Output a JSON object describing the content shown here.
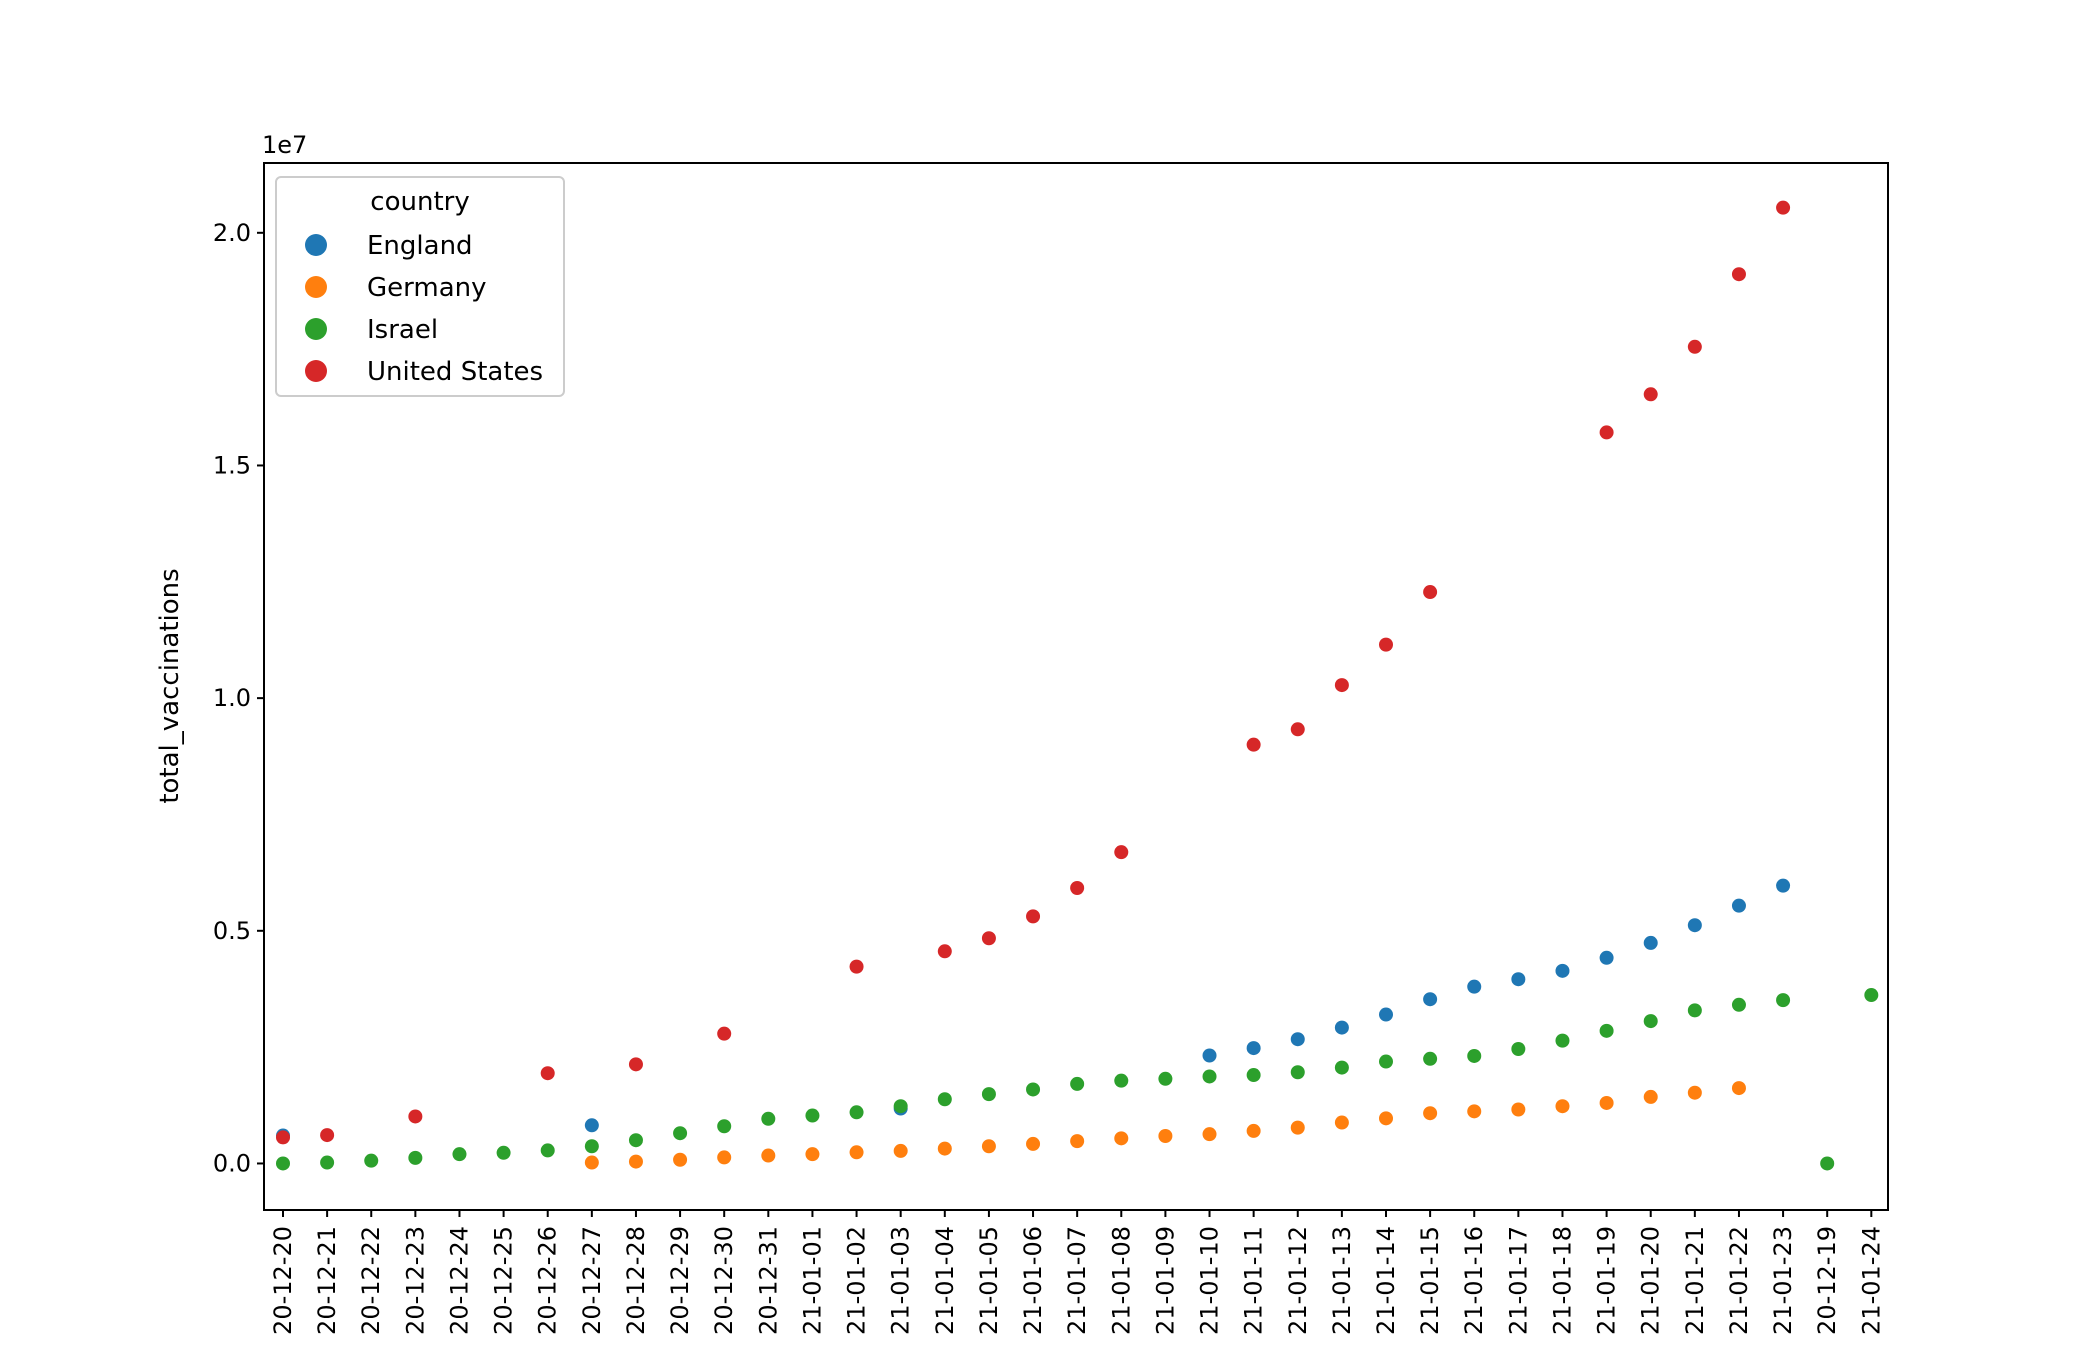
{
  "chart_data": {
    "type": "scatter",
    "title": "",
    "xlabel": "",
    "ylabel": "total_vaccinations",
    "offset_text": "1e7",
    "y_scale_factor": 10000000,
    "ylim": [
      -1000000,
      21500000
    ],
    "yticks": [
      0,
      5000000,
      10000000,
      15000000,
      20000000
    ],
    "ytick_labels": [
      "0.0",
      "0.5",
      "1.0",
      "1.5",
      "2.0"
    ],
    "categories": [
      "20-12-20",
      "20-12-21",
      "20-12-22",
      "20-12-23",
      "20-12-24",
      "20-12-25",
      "20-12-26",
      "20-12-27",
      "20-12-28",
      "20-12-29",
      "20-12-30",
      "20-12-31",
      "21-01-01",
      "21-01-02",
      "21-01-03",
      "21-01-04",
      "21-01-05",
      "21-01-06",
      "21-01-07",
      "21-01-08",
      "21-01-09",
      "21-01-10",
      "21-01-11",
      "21-01-12",
      "21-01-13",
      "21-01-14",
      "21-01-15",
      "21-01-16",
      "21-01-17",
      "21-01-18",
      "21-01-19",
      "21-01-20",
      "21-01-21",
      "21-01-22",
      "21-01-23",
      "20-12-19",
      "21-01-24"
    ],
    "grid": false,
    "legend": {
      "title": "country",
      "position": "top-left"
    },
    "series": [
      {
        "name": "England",
        "color": "#1f77b4",
        "points": [
          [
            "20-12-20",
            600000
          ],
          [
            "20-12-27",
            820000
          ],
          [
            "21-01-03",
            1180000
          ],
          [
            "21-01-10",
            2320000
          ],
          [
            "21-01-11",
            2480000
          ],
          [
            "21-01-12",
            2670000
          ],
          [
            "21-01-13",
            2920000
          ],
          [
            "21-01-14",
            3200000
          ],
          [
            "21-01-15",
            3530000
          ],
          [
            "21-01-16",
            3800000
          ],
          [
            "21-01-17",
            3960000
          ],
          [
            "21-01-18",
            4140000
          ],
          [
            "21-01-19",
            4420000
          ],
          [
            "21-01-20",
            4740000
          ],
          [
            "21-01-21",
            5120000
          ],
          [
            "21-01-22",
            5540000
          ],
          [
            "21-01-23",
            5970000
          ]
        ]
      },
      {
        "name": "Germany",
        "color": "#ff7f0e",
        "points": [
          [
            "20-12-27",
            20000
          ],
          [
            "20-12-28",
            40000
          ],
          [
            "20-12-29",
            80000
          ],
          [
            "20-12-30",
            130000
          ],
          [
            "20-12-31",
            170000
          ],
          [
            "21-01-01",
            200000
          ],
          [
            "21-01-02",
            240000
          ],
          [
            "21-01-03",
            270000
          ],
          [
            "21-01-04",
            320000
          ],
          [
            "21-01-05",
            370000
          ],
          [
            "21-01-06",
            420000
          ],
          [
            "21-01-07",
            480000
          ],
          [
            "21-01-08",
            540000
          ],
          [
            "21-01-09",
            590000
          ],
          [
            "21-01-10",
            630000
          ],
          [
            "21-01-11",
            700000
          ],
          [
            "21-01-12",
            770000
          ],
          [
            "21-01-13",
            880000
          ],
          [
            "21-01-14",
            970000
          ],
          [
            "21-01-15",
            1080000
          ],
          [
            "21-01-16",
            1120000
          ],
          [
            "21-01-17",
            1160000
          ],
          [
            "21-01-18",
            1230000
          ],
          [
            "21-01-19",
            1300000
          ],
          [
            "21-01-20",
            1430000
          ],
          [
            "21-01-21",
            1520000
          ],
          [
            "21-01-22",
            1620000
          ]
        ]
      },
      {
        "name": "Israel",
        "color": "#2ca02c",
        "points": [
          [
            "20-12-20",
            0
          ],
          [
            "20-12-21",
            20000
          ],
          [
            "20-12-22",
            60000
          ],
          [
            "20-12-23",
            120000
          ],
          [
            "20-12-24",
            200000
          ],
          [
            "20-12-25",
            230000
          ],
          [
            "20-12-26",
            280000
          ],
          [
            "20-12-27",
            370000
          ],
          [
            "20-12-28",
            500000
          ],
          [
            "20-12-29",
            650000
          ],
          [
            "20-12-30",
            800000
          ],
          [
            "20-12-31",
            960000
          ],
          [
            "21-01-01",
            1030000
          ],
          [
            "21-01-02",
            1100000
          ],
          [
            "21-01-03",
            1230000
          ],
          [
            "21-01-04",
            1380000
          ],
          [
            "21-01-05",
            1490000
          ],
          [
            "21-01-06",
            1590000
          ],
          [
            "21-01-07",
            1710000
          ],
          [
            "21-01-08",
            1780000
          ],
          [
            "21-01-09",
            1820000
          ],
          [
            "21-01-10",
            1870000
          ],
          [
            "21-01-11",
            1900000
          ],
          [
            "21-01-12",
            1960000
          ],
          [
            "21-01-13",
            2060000
          ],
          [
            "21-01-14",
            2190000
          ],
          [
            "21-01-15",
            2250000
          ],
          [
            "21-01-16",
            2310000
          ],
          [
            "21-01-17",
            2460000
          ],
          [
            "21-01-18",
            2640000
          ],
          [
            "21-01-19",
            2850000
          ],
          [
            "21-01-20",
            3060000
          ],
          [
            "21-01-21",
            3290000
          ],
          [
            "21-01-22",
            3410000
          ],
          [
            "21-01-23",
            3510000
          ],
          [
            "20-12-19",
            0
          ],
          [
            "21-01-24",
            3620000
          ]
        ]
      },
      {
        "name": "United States",
        "color": "#d62728",
        "points": [
          [
            "20-12-20",
            560000
          ],
          [
            "20-12-21",
            610000
          ],
          [
            "20-12-23",
            1010000
          ],
          [
            "20-12-26",
            1940000
          ],
          [
            "20-12-28",
            2130000
          ],
          [
            "20-12-30",
            2790000
          ],
          [
            "21-01-02",
            4230000
          ],
          [
            "21-01-04",
            4560000
          ],
          [
            "21-01-05",
            4840000
          ],
          [
            "21-01-06",
            5310000
          ],
          [
            "21-01-07",
            5920000
          ],
          [
            "21-01-08",
            6690000
          ],
          [
            "21-01-11",
            9000000
          ],
          [
            "21-01-12",
            9330000
          ],
          [
            "21-01-13",
            10280000
          ],
          [
            "21-01-14",
            11150000
          ],
          [
            "21-01-15",
            12280000
          ],
          [
            "21-01-19",
            15710000
          ],
          [
            "21-01-20",
            16530000
          ],
          [
            "21-01-21",
            17550000
          ],
          [
            "21-01-22",
            19110000
          ],
          [
            "21-01-23",
            20540000
          ]
        ]
      }
    ]
  }
}
